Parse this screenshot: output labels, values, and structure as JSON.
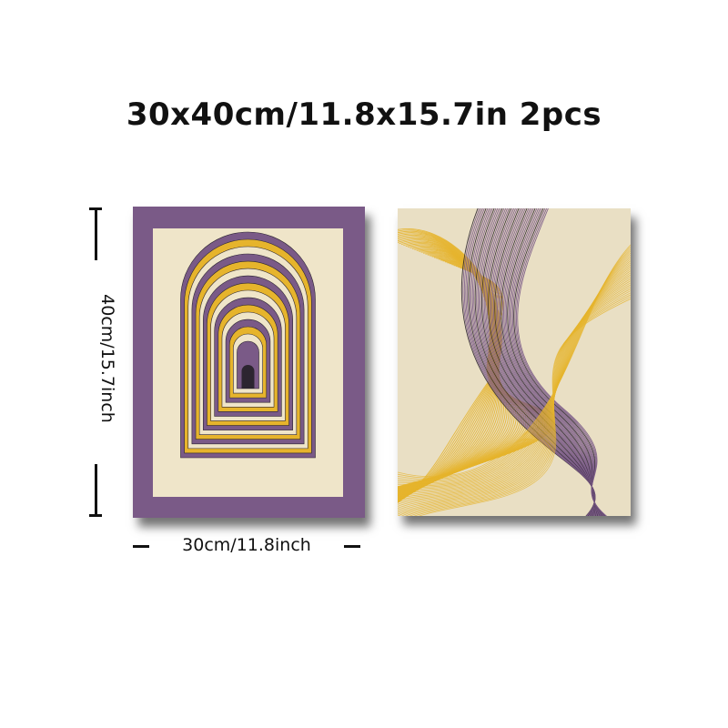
{
  "title": "30x40cm/11.8x15.7in 2pcs",
  "height_label": "40cm/15.7inch",
  "width_label": "30cm/11.8inch",
  "colors": {
    "purple": "#7a5a87",
    "gold": "#e6b42c",
    "cream": "#efe5c9",
    "dark": "#2c2530"
  },
  "images": {
    "left": "arches-print",
    "right": "flowing-lines-print"
  }
}
